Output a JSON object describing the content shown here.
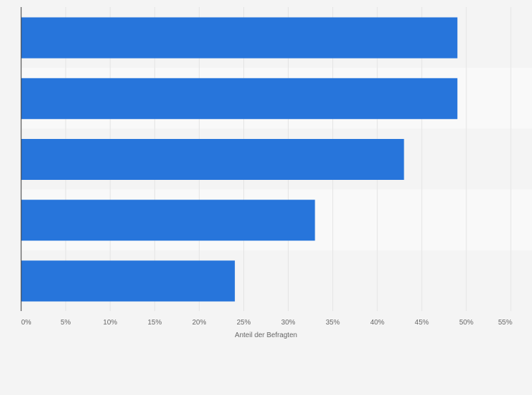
{
  "chart_data": {
    "type": "bar",
    "orientation": "horizontal",
    "categories": [
      "",
      "",
      "",
      "",
      ""
    ],
    "values": [
      49,
      49,
      43,
      33,
      24
    ],
    "xlabel": "Anteil der Befragten",
    "ylabel": "",
    "xlim": [
      0,
      55
    ],
    "x_ticks": [
      0,
      5,
      10,
      15,
      20,
      25,
      30,
      35,
      40,
      45,
      50,
      55
    ],
    "x_tick_labels": [
      "0%",
      "5%",
      "10%",
      "15%",
      "20%",
      "25%",
      "30%",
      "35%",
      "40%",
      "45%",
      "50%",
      "55%"
    ],
    "grid": true,
    "legend": "none",
    "colors": {
      "bar": "#2775db",
      "band_light": "#f9f9f9",
      "band_dark": "#f4f4f4",
      "gridline": "#e4e4e4",
      "axis": "#333333",
      "text": "#666666"
    }
  }
}
